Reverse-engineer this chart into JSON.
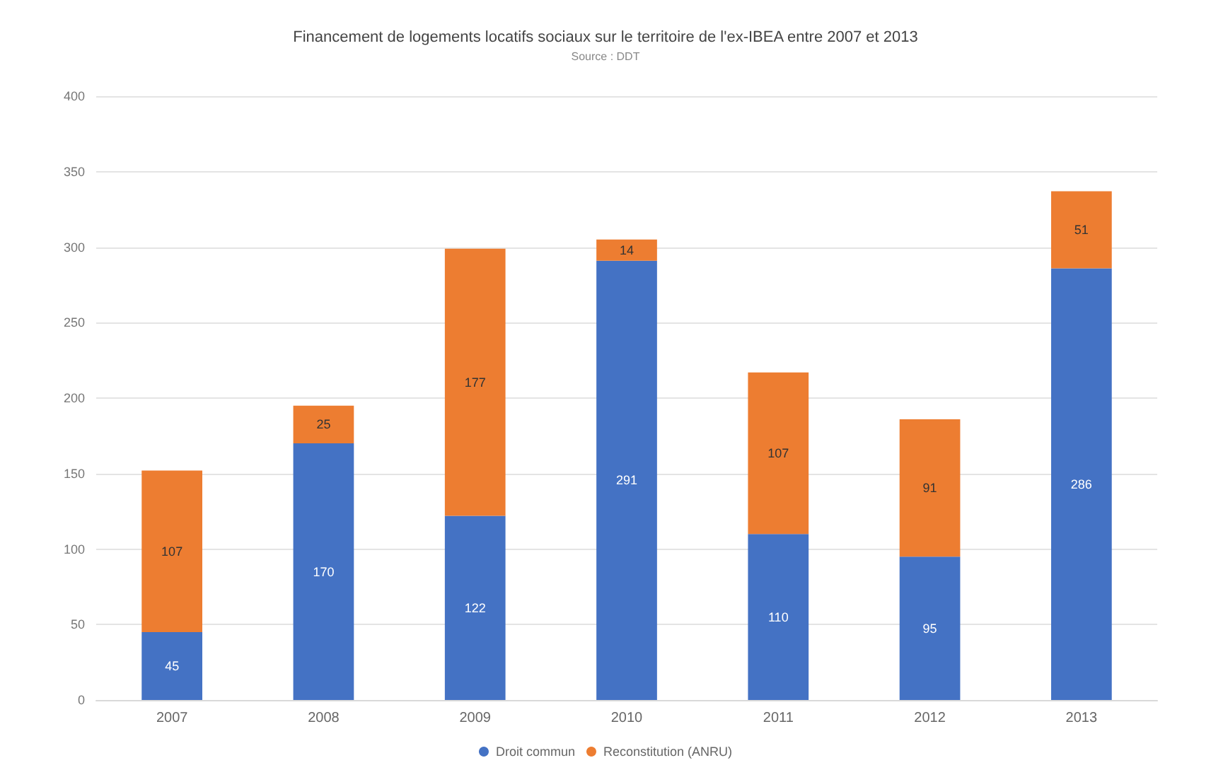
{
  "chart_data": {
    "type": "bar",
    "title": "Financement de logements locatifs sociaux sur le territoire de l'ex-IBEA entre 2007 et 2013",
    "subtitle": "Source : DDT",
    "categories": [
      "2007",
      "2008",
      "2009",
      "2010",
      "2011",
      "2012",
      "2013"
    ],
    "stacked": true,
    "series": [
      {
        "name": "Droit commun",
        "color": "#4472c4",
        "values": [
          45,
          170,
          122,
          291,
          110,
          95,
          286
        ]
      },
      {
        "name": "Reconstitution (ANRU)",
        "color": "#ed7d31",
        "values": [
          107,
          25,
          177,
          14,
          107,
          91,
          51
        ]
      }
    ],
    "ylim": [
      0,
      400
    ],
    "yticks": [
      0,
      50,
      100,
      150,
      200,
      250,
      300,
      350,
      400
    ],
    "grid": "y",
    "legend": "bottom",
    "data_labels": true
  }
}
